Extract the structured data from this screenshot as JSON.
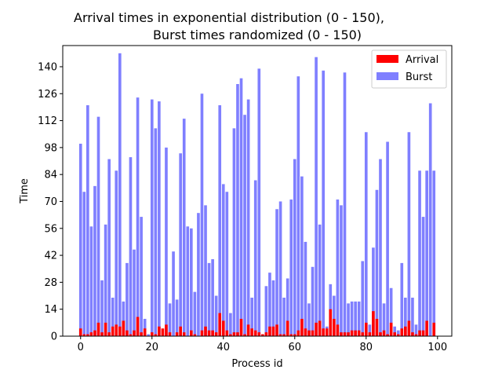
{
  "chart_data": {
    "type": "bar",
    "title_line1": "Arrival times in exponential distribution (0 - 150),",
    "title_line2": "Burst times randomized (0 - 150)",
    "xlabel": "Process id",
    "ylabel": "Time",
    "xlim": [
      -5,
      104
    ],
    "ylim": [
      0,
      151
    ],
    "xticks": [
      0,
      20,
      40,
      60,
      80,
      100
    ],
    "yticks": [
      0,
      14,
      28,
      42,
      56,
      70,
      84,
      98,
      112,
      126,
      140
    ],
    "legend_placement": "top-right",
    "x": [
      0,
      1,
      2,
      3,
      4,
      5,
      6,
      7,
      8,
      9,
      10,
      11,
      12,
      13,
      14,
      15,
      16,
      17,
      18,
      19,
      20,
      21,
      22,
      23,
      24,
      25,
      26,
      27,
      28,
      29,
      30,
      31,
      32,
      33,
      34,
      35,
      36,
      37,
      38,
      39,
      40,
      41,
      42,
      43,
      44,
      45,
      46,
      47,
      48,
      49,
      50,
      51,
      52,
      53,
      54,
      55,
      56,
      57,
      58,
      59,
      60,
      61,
      62,
      63,
      64,
      65,
      66,
      67,
      68,
      69,
      70,
      71,
      72,
      73,
      74,
      75,
      76,
      77,
      78,
      79,
      80,
      81,
      82,
      83,
      84,
      85,
      86,
      87,
      88,
      89,
      90,
      91,
      92,
      93,
      94,
      95,
      96,
      97,
      98,
      99
    ],
    "series": [
      {
        "name": "Arrival",
        "color": "#ff0000",
        "values": [
          4,
          1,
          1,
          2,
          3,
          7,
          2,
          7,
          2,
          5,
          6,
          5,
          8,
          3,
          1,
          3,
          10,
          2,
          4,
          0,
          2,
          1,
          5,
          4,
          6,
          2,
          0,
          2,
          5,
          2,
          0,
          3,
          1,
          0,
          3,
          5,
          3,
          3,
          2,
          12,
          8,
          3,
          1,
          2,
          2,
          9,
          1,
          6,
          4,
          3,
          2,
          1,
          2,
          5,
          5,
          6,
          1,
          1,
          8,
          1,
          1,
          3,
          9,
          4,
          3,
          3,
          7,
          8,
          4,
          4,
          14,
          9,
          6,
          2,
          2,
          2,
          3,
          3,
          3,
          2,
          7,
          2,
          13,
          9,
          2,
          3,
          1,
          7,
          2,
          1,
          4,
          5,
          8,
          2,
          1,
          3,
          3,
          8,
          0,
          7
        ]
      },
      {
        "name": "Burst",
        "color": "#7f7fff",
        "values": [
          100,
          75,
          120,
          57,
          78,
          114,
          29,
          58,
          92,
          20,
          86,
          147,
          18,
          38,
          93,
          45,
          124,
          62,
          9,
          1,
          123,
          108,
          122,
          0,
          98,
          17,
          44,
          19,
          95,
          113,
          57,
          56,
          23,
          64,
          126,
          68,
          38,
          40,
          21,
          120,
          79,
          75,
          12,
          108,
          131,
          134,
          115,
          123,
          20,
          81,
          139,
          1,
          26,
          33,
          29,
          66,
          70,
          20,
          30,
          71,
          92,
          135,
          83,
          49,
          17,
          36,
          145,
          58,
          138,
          5,
          27,
          21,
          71,
          68,
          137,
          17,
          18,
          18,
          18,
          39,
          106,
          6,
          46,
          76,
          92,
          17,
          101,
          25,
          5,
          3,
          38,
          20,
          106,
          20,
          6,
          86,
          62,
          86,
          121,
          86
        ]
      }
    ]
  }
}
